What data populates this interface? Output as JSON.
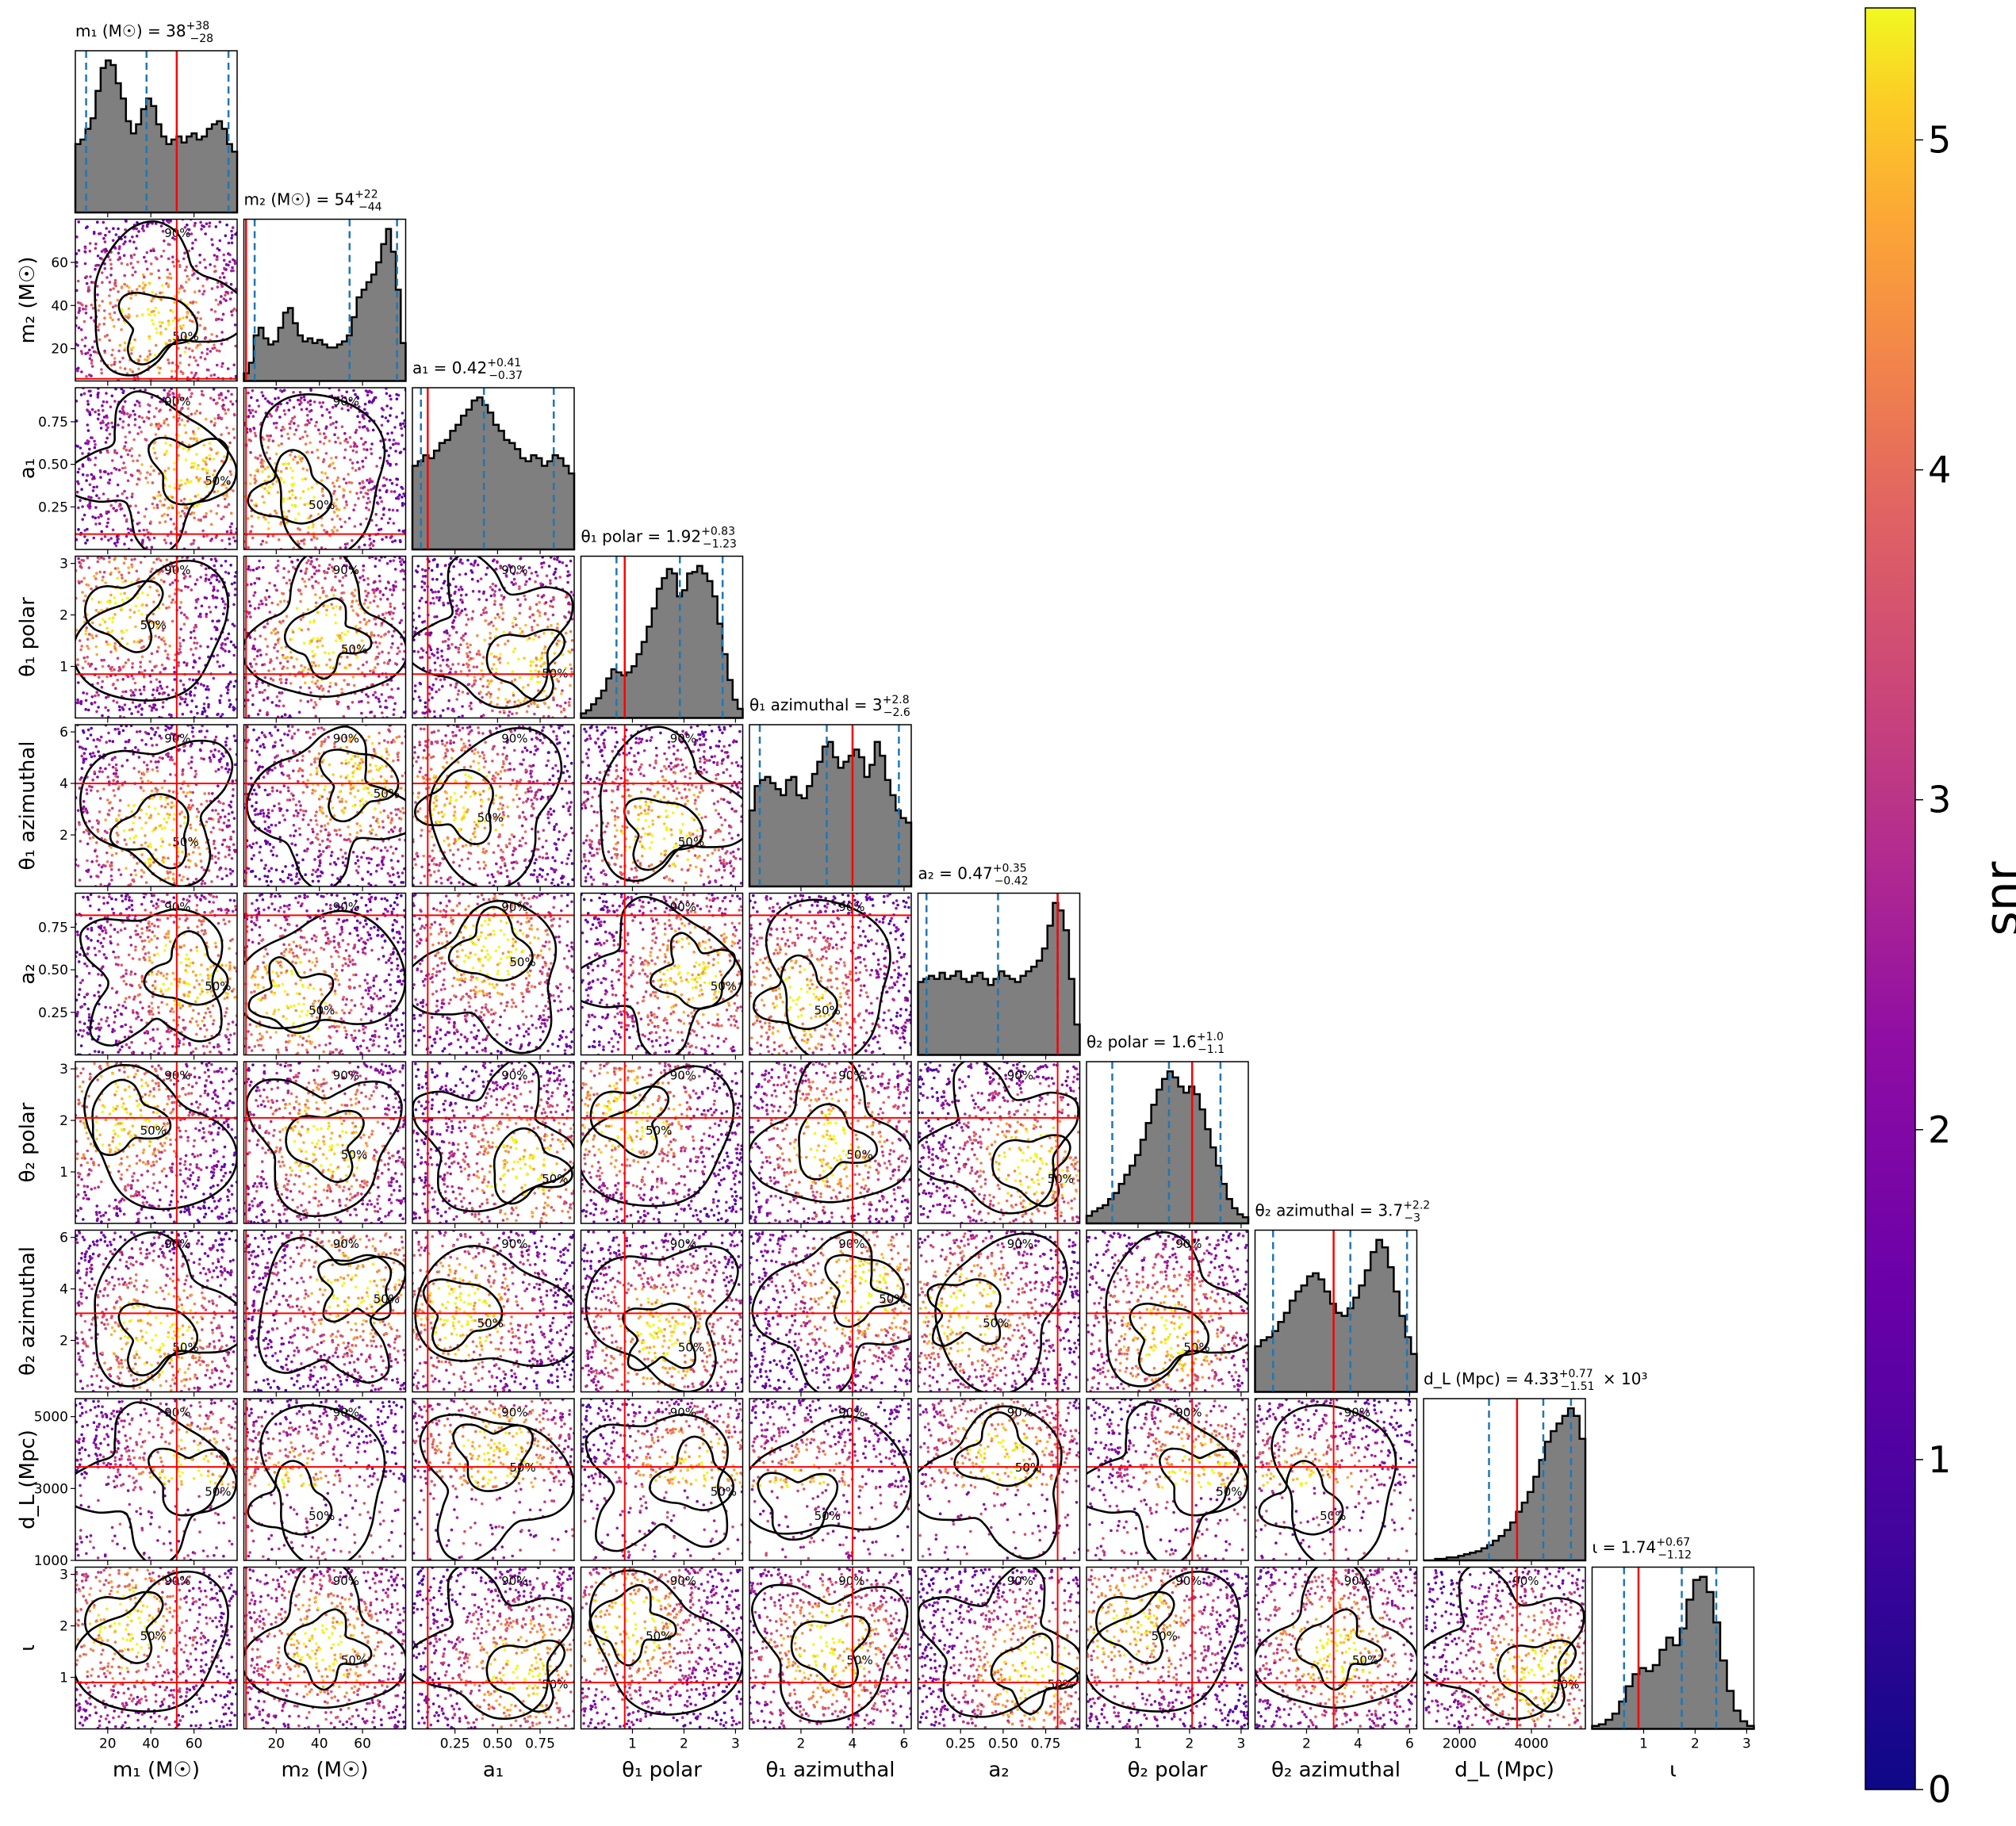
{
  "chart_data": {
    "type": "scatter",
    "subtype": "corner-plot",
    "parameters": [
      {
        "key": "m1",
        "axis_label": "m₁ (M☉)",
        "title": "m₁ (M☉) = 38",
        "sup": "+38",
        "sub": "−28",
        "range": [
          5,
          80
        ],
        "ticks": [
          20,
          40,
          60
        ],
        "tick_labels": [
          "20",
          "40",
          "60"
        ],
        "median": 38,
        "lower": 10,
        "upper": 76,
        "injected": 52
      },
      {
        "key": "m2",
        "axis_label": "m₂ (M☉)",
        "title": "m₂ (M☉) = 54",
        "sup": "+22",
        "sub": "−44",
        "range": [
          5,
          80
        ],
        "ticks": [
          20,
          40,
          60
        ],
        "tick_labels": [
          "20",
          "40",
          "60"
        ],
        "median": 54,
        "lower": 10,
        "upper": 76,
        "injected": 6
      },
      {
        "key": "a1",
        "axis_label": "a₁",
        "title": "a₁ = 0.42",
        "sup": "+0.41",
        "sub": "−0.37",
        "range": [
          0,
          0.95
        ],
        "ticks": [
          0.25,
          0.5,
          0.75
        ],
        "tick_labels": [
          "0.25",
          "0.50",
          "0.75"
        ],
        "median": 0.42,
        "lower": 0.05,
        "upper": 0.83,
        "injected": 0.09
      },
      {
        "key": "theta1_polar",
        "axis_label": "θ₁ polar",
        "title": "θ₁ polar = 1.92",
        "sup": "+0.83",
        "sub": "−1.23",
        "range": [
          0,
          3.14
        ],
        "ticks": [
          1,
          2,
          3
        ],
        "tick_labels": [
          "1",
          "2",
          "3"
        ],
        "median": 1.92,
        "lower": 0.69,
        "upper": 2.75,
        "injected": 0.85
      },
      {
        "key": "theta1_azimuthal",
        "axis_label": "θ₁ azimuthal",
        "title": "θ₁ azimuthal = 3",
        "sup": "+2.8",
        "sub": "−2.6",
        "range": [
          0,
          6.28
        ],
        "ticks": [
          2,
          4,
          6
        ],
        "tick_labels": [
          "2",
          "4",
          "6"
        ],
        "median": 3.0,
        "lower": 0.4,
        "upper": 5.8,
        "injected": 4.0
      },
      {
        "key": "a2",
        "axis_label": "a₂",
        "title": "a₂ = 0.47",
        "sup": "+0.35",
        "sub": "−0.42",
        "range": [
          0,
          0.95
        ],
        "ticks": [
          0.25,
          0.5,
          0.75
        ],
        "tick_labels": [
          "0.25",
          "0.50",
          "0.75"
        ],
        "median": 0.47,
        "lower": 0.05,
        "upper": 0.82,
        "injected": 0.82
      },
      {
        "key": "theta2_polar",
        "axis_label": "θ₂ polar",
        "title": "θ₂ polar = 1.6",
        "sup": "+1.0",
        "sub": "−1.1",
        "range": [
          0,
          3.14
        ],
        "ticks": [
          1,
          2,
          3
        ],
        "tick_labels": [
          "1",
          "2",
          "3"
        ],
        "median": 1.6,
        "lower": 0.5,
        "upper": 2.6,
        "injected": 2.05
      },
      {
        "key": "theta2_azimuthal",
        "axis_label": "θ₂ azimuthal",
        "title": "θ₂ azimuthal = 3.7",
        "sup": "+2.2",
        "sub": "−3",
        "range": [
          0,
          6.28
        ],
        "ticks": [
          2,
          4,
          6
        ],
        "tick_labels": [
          "2",
          "4",
          "6"
        ],
        "median": 3.7,
        "lower": 0.7,
        "upper": 5.9,
        "injected": 3.05
      },
      {
        "key": "dL",
        "axis_label": "d_L (Mpc)",
        "title": "d_L (Mpc) = 4.33",
        "sup": "+0.77",
        "sub": "−1.51",
        "title_suffix": "× 10³",
        "range": [
          1000,
          5500
        ],
        "ticks": [
          2000,
          4000
        ],
        "tick_labels": [
          "2000",
          "4000"
        ],
        "yticks": [
          1000,
          3000,
          5000
        ],
        "ytick_labels": [
          "1000",
          "3000",
          "5000"
        ],
        "median": 4330,
        "lower": 2820,
        "upper": 5100,
        "injected": 3600
      },
      {
        "key": "iota",
        "axis_label": "ι",
        "title": "ι = 1.74",
        "sup": "+0.67",
        "sub": "−1.12",
        "range": [
          0,
          3.14
        ],
        "ticks": [
          1,
          2,
          3
        ],
        "tick_labels": [
          "1",
          "2",
          "3"
        ],
        "median": 1.74,
        "lower": 0.62,
        "upper": 2.41,
        "injected": 0.9
      }
    ],
    "histogram_shapes": {
      "m1": [
        0.45,
        0.48,
        0.55,
        0.62,
        0.8,
        0.95,
        1.0,
        0.97,
        0.85,
        0.75,
        0.6,
        0.52,
        0.58,
        0.68,
        0.75,
        0.7,
        0.58,
        0.5,
        0.45,
        0.48,
        0.5,
        0.46,
        0.5,
        0.52,
        0.48,
        0.5,
        0.55,
        0.58,
        0.6,
        0.55,
        0.45,
        0.4
      ],
      "m2": [
        0.05,
        0.12,
        0.3,
        0.35,
        0.28,
        0.24,
        0.26,
        0.35,
        0.45,
        0.48,
        0.38,
        0.3,
        0.26,
        0.28,
        0.25,
        0.27,
        0.24,
        0.22,
        0.22,
        0.24,
        0.26,
        0.3,
        0.42,
        0.55,
        0.6,
        0.65,
        0.7,
        0.78,
        0.9,
        1.0,
        0.85,
        0.6,
        0.25
      ],
      "a1": [
        0.55,
        0.58,
        0.62,
        0.6,
        0.65,
        0.7,
        0.72,
        0.78,
        0.82,
        0.88,
        0.92,
        0.98,
        1.0,
        0.95,
        0.9,
        0.82,
        0.78,
        0.72,
        0.7,
        0.66,
        0.6,
        0.58,
        0.62,
        0.6,
        0.55,
        0.58,
        0.62,
        0.6,
        0.55,
        0.5
      ],
      "theta1_polar": [
        0.03,
        0.05,
        0.09,
        0.13,
        0.18,
        0.26,
        0.32,
        0.3,
        0.28,
        0.3,
        0.34,
        0.42,
        0.5,
        0.6,
        0.72,
        0.85,
        0.92,
        0.98,
        0.95,
        0.8,
        0.84,
        0.95,
        0.96,
        1.0,
        0.95,
        0.9,
        0.8,
        0.62,
        0.42,
        0.25,
        0.12,
        0.06
      ],
      "theta1_azimuthal": [
        0.5,
        0.66,
        0.7,
        0.72,
        0.68,
        0.64,
        0.6,
        0.7,
        0.72,
        0.6,
        0.58,
        0.66,
        0.74,
        0.82,
        0.92,
        0.95,
        0.85,
        0.78,
        0.82,
        0.86,
        0.9,
        0.85,
        0.72,
        0.8,
        0.95,
        0.86,
        0.7,
        0.6,
        0.5,
        0.45,
        0.42
      ],
      "a2": [
        0.48,
        0.5,
        0.52,
        0.5,
        0.54,
        0.5,
        0.52,
        0.55,
        0.5,
        0.48,
        0.52,
        0.54,
        0.5,
        0.46,
        0.5,
        0.55,
        0.52,
        0.5,
        0.48,
        0.52,
        0.55,
        0.58,
        0.62,
        0.7,
        0.85,
        1.0,
        0.95,
        0.82,
        0.5,
        0.2
      ],
      "theta2_polar": [
        0.05,
        0.08,
        0.1,
        0.12,
        0.16,
        0.2,
        0.26,
        0.32,
        0.38,
        0.45,
        0.55,
        0.66,
        0.78,
        0.88,
        0.95,
        1.0,
        0.96,
        0.9,
        0.86,
        0.9,
        0.85,
        0.75,
        0.62,
        0.5,
        0.38,
        0.26,
        0.16,
        0.1,
        0.06,
        0.04
      ],
      "theta2_azimuthal": [
        0.3,
        0.34,
        0.36,
        0.4,
        0.46,
        0.52,
        0.6,
        0.66,
        0.7,
        0.76,
        0.78,
        0.74,
        0.66,
        0.58,
        0.52,
        0.5,
        0.55,
        0.62,
        0.7,
        0.8,
        0.92,
        1.0,
        0.95,
        0.82,
        0.66,
        0.5,
        0.36,
        0.25
      ],
      "dL": [
        0.0,
        0.0,
        0.01,
        0.01,
        0.02,
        0.02,
        0.03,
        0.04,
        0.05,
        0.06,
        0.08,
        0.1,
        0.13,
        0.16,
        0.2,
        0.25,
        0.32,
        0.38,
        0.45,
        0.55,
        0.66,
        0.78,
        0.85,
        0.9,
        0.95,
        1.0,
        0.95,
        0.8
      ],
      "iota": [
        0.02,
        0.03,
        0.06,
        0.1,
        0.18,
        0.28,
        0.36,
        0.4,
        0.38,
        0.42,
        0.52,
        0.6,
        0.55,
        0.66,
        0.85,
        0.98,
        1.0,
        0.9,
        0.7,
        0.45,
        0.25,
        0.12,
        0.05,
        0.02
      ]
    },
    "contour_labels": [
      "50%",
      "90%"
    ],
    "colorbar": {
      "label": "snr",
      "min": 0,
      "max": 5.4,
      "ticks": [
        0,
        1,
        2,
        3,
        4,
        5
      ],
      "tick_labels": [
        "0",
        "1",
        "2",
        "3",
        "4",
        "5"
      ],
      "colormap": "plasma"
    },
    "colors": {
      "histogram_fill": "#7f7f7f",
      "histogram_edge": "#000000",
      "quantile_line": "#1f77b4",
      "truth_line": "#ff0000",
      "contour": "#000000"
    }
  }
}
